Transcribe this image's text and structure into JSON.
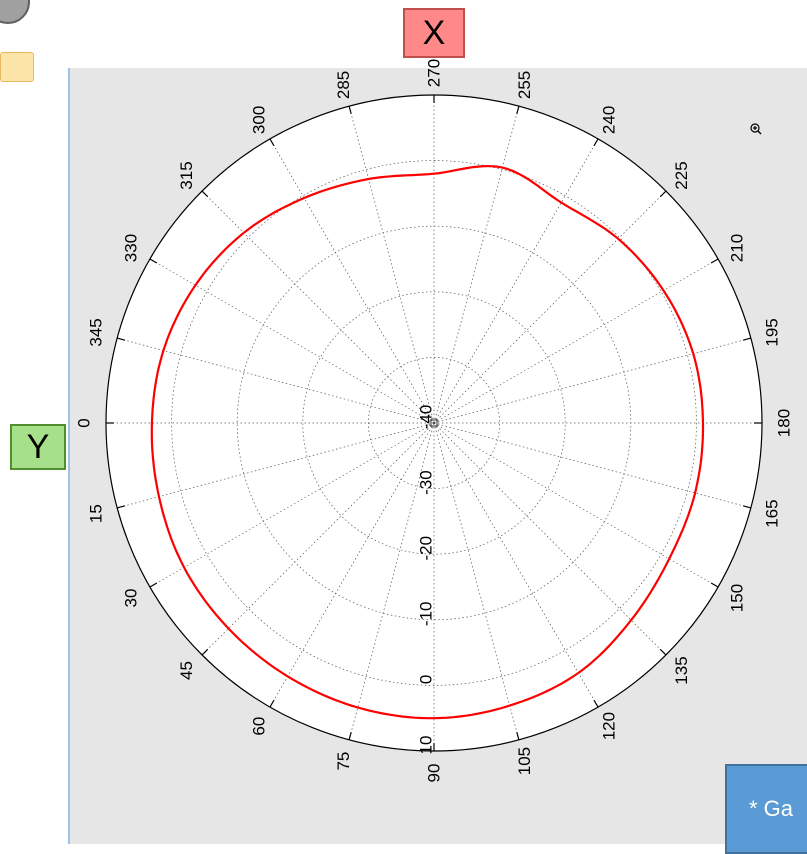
{
  "labels": {
    "x_axis_marker": "X",
    "y_axis_marker": "Y",
    "note_text": "* Ga"
  },
  "icons": {
    "zoom": "zoom-in-icon"
  },
  "colors": {
    "trace": "#ff0000",
    "panel": "#e6e6e6",
    "x_marker_bg": "#ff8888",
    "y_marker_bg": "#a6e08a",
    "note_bg": "#5b9bd5"
  },
  "chart_data": {
    "type": "line",
    "subtype": "polar",
    "angle_ticks": [
      "0",
      "345",
      "330",
      "315",
      "300",
      "285",
      "270",
      "255",
      "240",
      "225",
      "210",
      "195",
      "180",
      "165",
      "150",
      "135",
      "120",
      "105",
      "90",
      "75",
      "60",
      "45",
      "30",
      "15"
    ],
    "radial_ticks": [
      "10",
      "0",
      "-10",
      "-20",
      "-30",
      "-40"
    ],
    "radial_range": [
      -40,
      10
    ],
    "grid": true,
    "series": [
      {
        "angles_deg": [
          0,
          15,
          30,
          45,
          60,
          75,
          90,
          105,
          120,
          135,
          150,
          165,
          180,
          195,
          210,
          225,
          240,
          255,
          270,
          285,
          300,
          315,
          330,
          345
        ],
        "values_db": [
          3.0,
          3.4,
          4.0,
          4.3,
          4.6,
          4.9,
          5.0,
          4.6,
          4.0,
          2.5,
          1.4,
          1.2,
          1.0,
          0.9,
          0.4,
          -0.3,
          -1.2,
          0.3,
          -2.0,
          -1.5,
          -0.4,
          1.0,
          2.0,
          2.7
        ]
      }
    ]
  }
}
